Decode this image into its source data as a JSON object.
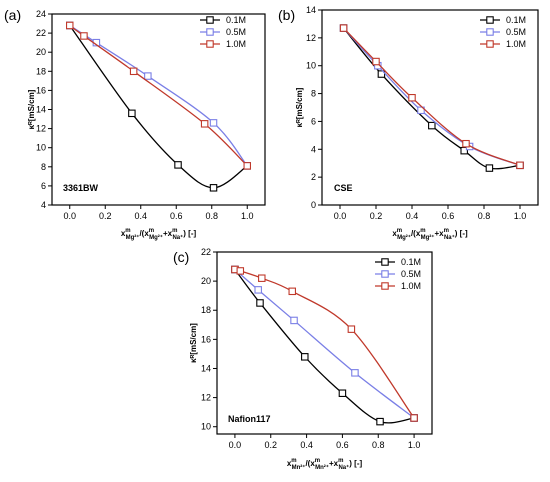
{
  "chart_data": [
    {
      "type": "line",
      "panel": "(a)",
      "sample": "3361BW",
      "ylabel": "κᴿ[mS/cm]",
      "xlabel_parts": [
        "x",
        "m",
        "Mg²⁺",
        "/(x",
        "m",
        "Mg²⁺",
        "+x",
        "m",
        "Na⁺",
        ") [-]"
      ],
      "xlim": [
        -0.1,
        1.1
      ],
      "ylim": [
        4,
        24
      ],
      "xticks": [
        "0.0",
        "0.2",
        "0.4",
        "0.6",
        "0.8",
        "1.0"
      ],
      "yticks": [
        "4",
        "6",
        "8",
        "10",
        "12",
        "14",
        "16",
        "18",
        "20",
        "22",
        "24"
      ],
      "series": [
        {
          "name": "0.1M",
          "color": "#000000",
          "x": [
            0.0,
            0.35,
            0.61,
            0.81,
            1.0
          ],
          "y": [
            22.8,
            13.6,
            8.2,
            5.8,
            8.1
          ]
        },
        {
          "name": "0.5M",
          "color": "#7a7fe6",
          "x": [
            0.0,
            0.15,
            0.44,
            0.81,
            1.0
          ],
          "y": [
            22.8,
            21.0,
            17.5,
            12.6,
            8.1
          ]
        },
        {
          "name": "1.0M",
          "color": "#c0392b",
          "x": [
            0.0,
            0.08,
            0.36,
            0.76,
            1.0
          ],
          "y": [
            22.8,
            21.7,
            18.0,
            12.5,
            8.1
          ]
        }
      ]
    },
    {
      "type": "line",
      "panel": "(b)",
      "sample": "CSE",
      "ylabel": "κᴿ[mS/cm]",
      "xlabel_parts": [
        "x",
        "m",
        "Mg²⁺",
        "/(x",
        "m",
        "Mg²⁺",
        "+x",
        "m",
        "Na⁺",
        ") [-]"
      ],
      "xlim": [
        -0.1,
        1.1
      ],
      "ylim": [
        0,
        14
      ],
      "xticks": [
        "0.0",
        "0.2",
        "0.4",
        "0.6",
        "0.8",
        "1.0"
      ],
      "yticks": [
        "0",
        "2",
        "4",
        "6",
        "8",
        "10",
        "12",
        "14"
      ],
      "series": [
        {
          "name": "0.1M",
          "color": "#000000",
          "x": [
            0.02,
            0.23,
            0.51,
            0.69,
            0.83,
            1.0
          ],
          "y": [
            12.7,
            9.4,
            5.7,
            3.9,
            2.65,
            2.85
          ]
        },
        {
          "name": "0.5M",
          "color": "#7a7fe6",
          "x": [
            0.02,
            0.21,
            0.45,
            0.72,
            1.0
          ],
          "y": [
            12.7,
            10.0,
            6.8,
            4.2,
            2.85
          ]
        },
        {
          "name": "1.0M",
          "color": "#c0392b",
          "x": [
            0.02,
            0.2,
            0.4,
            0.7,
            1.0
          ],
          "y": [
            12.7,
            10.3,
            7.7,
            4.4,
            2.85
          ]
        }
      ]
    },
    {
      "type": "line",
      "panel": "(c)",
      "sample": "Nafion117",
      "ylabel": "κᴿ[mS/cm]",
      "xlabel_parts": [
        "x",
        "m",
        "Mn²⁺",
        "/(x",
        "m",
        "Mn²⁺",
        "+x",
        "m",
        "Na⁺",
        ") [-]"
      ],
      "xlim": [
        -0.1,
        1.1
      ],
      "ylim": [
        9.5,
        22
      ],
      "xticks": [
        "0.0",
        "0.2",
        "0.4",
        "0.6",
        "0.8",
        "1.0"
      ],
      "yticks": [
        "10",
        "12",
        "14",
        "16",
        "18",
        "20",
        "22"
      ],
      "series": [
        {
          "name": "0.1M",
          "color": "#000000",
          "x": [
            0.0,
            0.14,
            0.39,
            0.6,
            0.81,
            1.0
          ],
          "y": [
            20.8,
            18.5,
            14.8,
            12.3,
            10.35,
            10.6
          ]
        },
        {
          "name": "0.5M",
          "color": "#7a7fe6",
          "x": [
            0.0,
            0.13,
            0.33,
            0.67,
            1.0
          ],
          "y": [
            20.8,
            19.4,
            17.3,
            13.7,
            10.6
          ]
        },
        {
          "name": "1.0M",
          "color": "#c0392b",
          "x": [
            0.0,
            0.03,
            0.15,
            0.32,
            0.65,
            1.0
          ],
          "y": [
            20.8,
            20.7,
            20.2,
            19.3,
            16.7,
            10.6
          ]
        }
      ]
    }
  ]
}
